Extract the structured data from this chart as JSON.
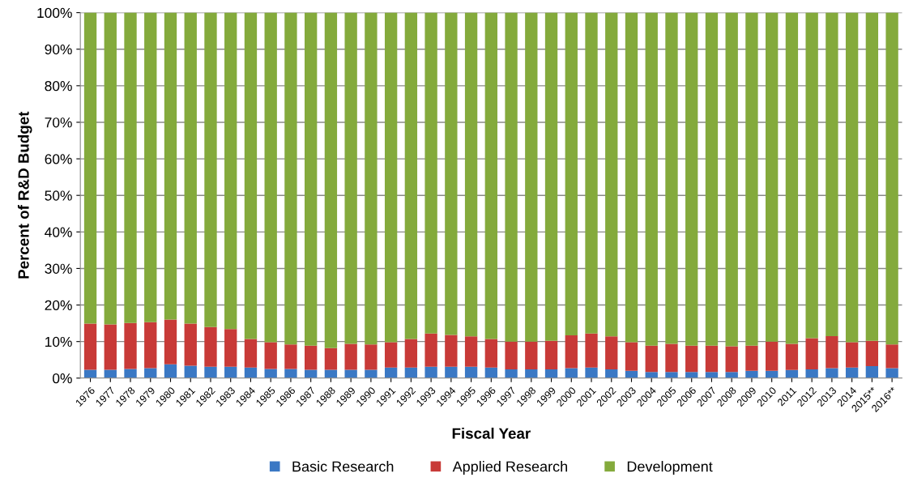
{
  "chart_data": {
    "type": "bar",
    "stacked": true,
    "xlabel": "Fiscal Year",
    "ylabel": "Percent of R&D Budget",
    "categories": [
      "1976",
      "1977",
      "1978",
      "1979",
      "1980",
      "1981",
      "1982",
      "1983",
      "1984",
      "1985",
      "1986",
      "1987",
      "1988",
      "1989",
      "1990",
      "1991",
      "1992",
      "1993",
      "1994",
      "1995",
      "1996",
      "1997",
      "1998",
      "1999",
      "2000",
      "2001",
      "2002",
      "2003",
      "2004",
      "2005",
      "2006",
      "2007",
      "2008",
      "2009",
      "2010",
      "2011",
      "2012",
      "2013",
      "2014",
      "2015**",
      "2016**"
    ],
    "series": [
      {
        "name": "Basic Research",
        "color": "#3a78c4",
        "values": [
          2.3,
          2.3,
          2.5,
          2.7,
          3.8,
          3.4,
          3.1,
          3.1,
          2.9,
          2.5,
          2.5,
          2.3,
          2.3,
          2.3,
          2.3,
          2.9,
          2.9,
          3.1,
          3.1,
          3.1,
          2.9,
          2.4,
          2.4,
          2.4,
          2.7,
          2.9,
          2.4,
          2.0,
          1.7,
          1.7,
          1.7,
          1.7,
          1.7,
          2.0,
          2.0,
          2.2,
          2.4,
          2.7,
          2.9,
          3.3,
          2.7
        ]
      },
      {
        "name": "Applied Research",
        "color": "#c83a37",
        "values": [
          12.6,
          12.4,
          12.6,
          12.6,
          12.2,
          11.5,
          10.9,
          10.3,
          7.8,
          7.3,
          6.7,
          6.6,
          5.9,
          7.1,
          6.9,
          6.9,
          7.8,
          9.1,
          8.7,
          8.3,
          7.8,
          7.6,
          7.6,
          7.8,
          9.0,
          9.3,
          9.0,
          7.8,
          7.2,
          7.7,
          7.2,
          7.2,
          7.0,
          6.9,
          8.0,
          7.2,
          8.5,
          8.8,
          6.9,
          6.9,
          6.5
        ]
      },
      {
        "name": "Development",
        "color": "#84aa3c",
        "values": [
          85.1,
          85.3,
          84.9,
          84.7,
          84.0,
          85.1,
          86.0,
          86.6,
          89.3,
          90.2,
          90.8,
          91.1,
          91.8,
          90.6,
          90.8,
          90.2,
          89.3,
          87.8,
          88.2,
          88.6,
          89.3,
          90.0,
          90.0,
          89.8,
          88.3,
          87.8,
          88.6,
          90.2,
          91.1,
          90.6,
          91.1,
          91.1,
          91.3,
          91.1,
          90.0,
          90.6,
          89.1,
          88.5,
          90.2,
          89.8,
          90.8
        ]
      }
    ],
    "ylim": [
      0,
      100
    ],
    "yticks": [
      {
        "value": 0,
        "label": "0%"
      },
      {
        "value": 10,
        "label": "10%"
      },
      {
        "value": 20,
        "label": "20%"
      },
      {
        "value": 30,
        "label": "30%"
      },
      {
        "value": 40,
        "label": "40%"
      },
      {
        "value": 50,
        "label": "50%"
      },
      {
        "value": 60,
        "label": "60%"
      },
      {
        "value": 70,
        "label": "70%"
      },
      {
        "value": 80,
        "label": "80%"
      },
      {
        "value": 90,
        "label": "90%"
      },
      {
        "value": 100,
        "label": "100%"
      }
    ],
    "grid": "y",
    "legend": "bottom"
  }
}
